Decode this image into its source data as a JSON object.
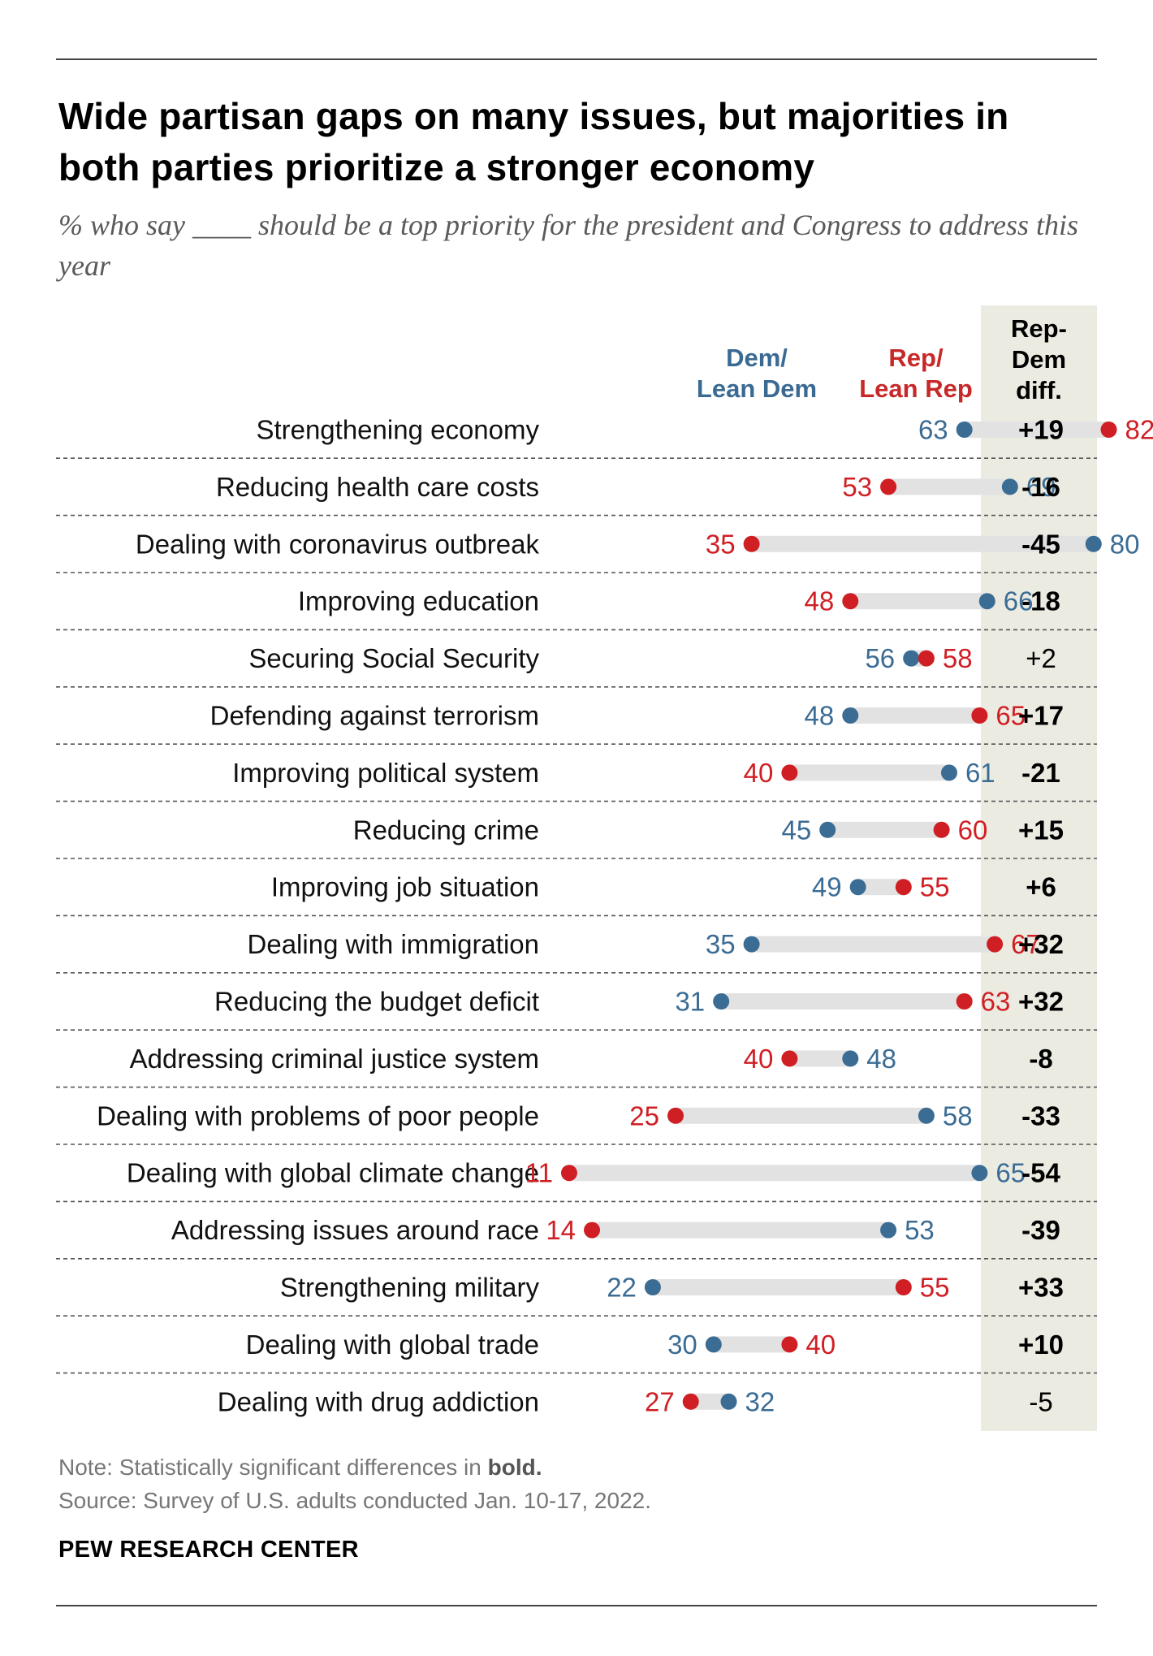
{
  "title": "Wide partisan gaps on many issues, but majorities in both parties prioritize a stronger economy",
  "subtitle": "% who say ____ should be a top priority for the president and Congress to address this year",
  "headers": {
    "dem": [
      "Dem/",
      "Lean Dem"
    ],
    "rep": [
      "Rep/",
      "Lean Rep"
    ],
    "diff": [
      "Rep-",
      "Dem",
      "diff."
    ]
  },
  "colors": {
    "dem": "#3b6c94",
    "rep": "#d01f24",
    "bar": "#e2e2e2",
    "band": "#ecebe2"
  },
  "note": {
    "prefix": "Note: Statistically significant differences in ",
    "bold": "bold."
  },
  "source": "Source: Survey of U.S. adults conducted Jan. 10-17, 2022.",
  "brand": "PEW RESEARCH CENTER",
  "chart_data": {
    "type": "dot-plot",
    "series": [
      "Dem/Lean Dem",
      "Rep/Lean Rep"
    ],
    "rows": [
      {
        "label": "Strengthening economy",
        "dem": 63,
        "rep": 82,
        "diff": "+19",
        "significant": true
      },
      {
        "label": "Reducing health care costs",
        "dem": 69,
        "rep": 53,
        "diff": "-16",
        "significant": true
      },
      {
        "label": "Dealing with coronavirus outbreak",
        "dem": 80,
        "rep": 35,
        "diff": "-45",
        "significant": true
      },
      {
        "label": "Improving education",
        "dem": 66,
        "rep": 48,
        "diff": "-18",
        "significant": true
      },
      {
        "label": "Securing Social Security",
        "dem": 56,
        "rep": 58,
        "diff": "+2",
        "significant": false
      },
      {
        "label": "Defending against terrorism",
        "dem": 48,
        "rep": 65,
        "diff": "+17",
        "significant": true
      },
      {
        "label": "Improving political system",
        "dem": 61,
        "rep": 40,
        "diff": "-21",
        "significant": true
      },
      {
        "label": "Reducing crime",
        "dem": 45,
        "rep": 60,
        "diff": "+15",
        "significant": true
      },
      {
        "label": "Improving job situation",
        "dem": 49,
        "rep": 55,
        "diff": "+6",
        "significant": true
      },
      {
        "label": "Dealing with immigration",
        "dem": 35,
        "rep": 67,
        "diff": "+32",
        "significant": true
      },
      {
        "label": "Reducing the budget deficit",
        "dem": 31,
        "rep": 63,
        "diff": "+32",
        "significant": true
      },
      {
        "label": "Addressing criminal justice system",
        "dem": 48,
        "rep": 40,
        "diff": "-8",
        "significant": true
      },
      {
        "label": "Dealing with problems of poor people",
        "dem": 58,
        "rep": 25,
        "diff": "-33",
        "significant": true
      },
      {
        "label": "Dealing with global climate change",
        "dem": 65,
        "rep": 11,
        "diff": "-54",
        "significant": true
      },
      {
        "label": "Addressing issues around race",
        "dem": 53,
        "rep": 14,
        "diff": "-39",
        "significant": true
      },
      {
        "label": "Strengthening military",
        "dem": 22,
        "rep": 55,
        "diff": "+33",
        "significant": true
      },
      {
        "label": "Dealing with global trade",
        "dem": 30,
        "rep": 40,
        "diff": "+10",
        "significant": true
      },
      {
        "label": "Dealing with drug addiction",
        "dem": 32,
        "rep": 27,
        "diff": "-5",
        "significant": false
      }
    ]
  }
}
